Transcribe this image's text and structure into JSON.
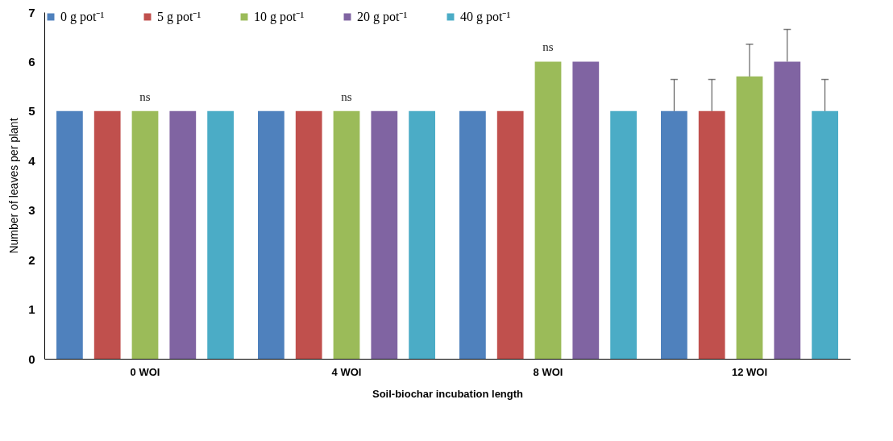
{
  "chart_data": {
    "type": "bar",
    "xlabel": "Soil-biochar incubation length",
    "ylabel": "Number of leaves per plant",
    "categories": [
      "0 WOI",
      "4 WOI",
      "8 WOI",
      "12 WOI"
    ],
    "series": [
      {
        "name": "0 g pot⁻¹",
        "color": "#4f81bd",
        "values": [
          5,
          5,
          5,
          5
        ],
        "errors": [
          null,
          null,
          null,
          0.64
        ]
      },
      {
        "name": "5 g pot⁻¹",
        "color": "#c0504d",
        "values": [
          5,
          5,
          5,
          5
        ],
        "errors": [
          null,
          null,
          null,
          0.64
        ]
      },
      {
        "name": "10 g pot⁻¹",
        "color": "#9bbb59",
        "values": [
          5,
          5,
          6,
          5.7
        ],
        "errors": [
          null,
          null,
          null,
          0.65
        ]
      },
      {
        "name": "20 g pot⁻¹",
        "color": "#8064a2",
        "values": [
          5,
          5,
          6,
          6
        ],
        "errors": [
          null,
          null,
          null,
          0.65
        ]
      },
      {
        "name": "40 g pot⁻¹",
        "color": "#4bacc6",
        "values": [
          5,
          5,
          5,
          5
        ],
        "errors": [
          null,
          null,
          null,
          0.64
        ]
      }
    ],
    "ylim": [
      0,
      7
    ],
    "yticks": [
      0,
      1,
      2,
      3,
      4,
      5,
      6,
      7
    ],
    "grid": false,
    "legend": "top",
    "annotations": [
      {
        "text": "ns",
        "x": "0 WOI",
        "y": 5
      },
      {
        "text": "ns",
        "x": "4 WOI",
        "y": 5
      },
      {
        "text": "ns",
        "x": "8 WOI",
        "y": 6
      }
    ]
  }
}
